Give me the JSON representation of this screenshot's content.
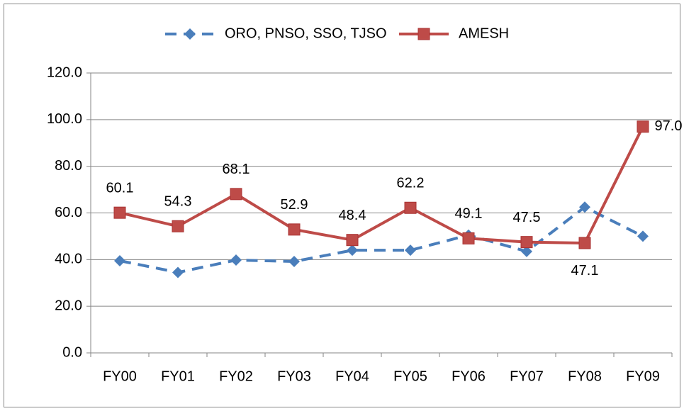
{
  "chart_data": {
    "type": "line",
    "categories": [
      "FY00",
      "FY01",
      "FY02",
      "FY03",
      "FY04",
      "FY05",
      "FY06",
      "FY07",
      "FY08",
      "FY09"
    ],
    "series": [
      {
        "name": "ORO, PNSO, SSO, TJSO",
        "color": "#4a7ebb",
        "marker": "diamond",
        "dash": true,
        "values": [
          39.5,
          34.5,
          39.8,
          39.2,
          44.0,
          44.0,
          50.5,
          43.5,
          62.5,
          50.0
        ]
      },
      {
        "name": "AMESH",
        "color": "#be4b48",
        "marker": "square",
        "dash": false,
        "values": [
          60.1,
          54.3,
          68.1,
          52.9,
          48.4,
          62.2,
          49.1,
          47.5,
          47.1,
          97.0
        ],
        "value_labels": [
          "60.1",
          "54.3",
          "68.1",
          "52.9",
          "48.4",
          "62.2",
          "49.1",
          "47.5",
          "47.1",
          "97.0"
        ]
      }
    ],
    "ylim": [
      0,
      120
    ],
    "yticks": [
      {
        "value": 0,
        "label": "0.0"
      },
      {
        "value": 20,
        "label": "20.0"
      },
      {
        "value": 40,
        "label": "40.0"
      },
      {
        "value": 60,
        "label": "60.0"
      },
      {
        "value": 80,
        "label": "80.0"
      },
      {
        "value": 100,
        "label": "100.0"
      },
      {
        "value": 120,
        "label": "120.0"
      }
    ],
    "grid": true,
    "legend": "top"
  }
}
